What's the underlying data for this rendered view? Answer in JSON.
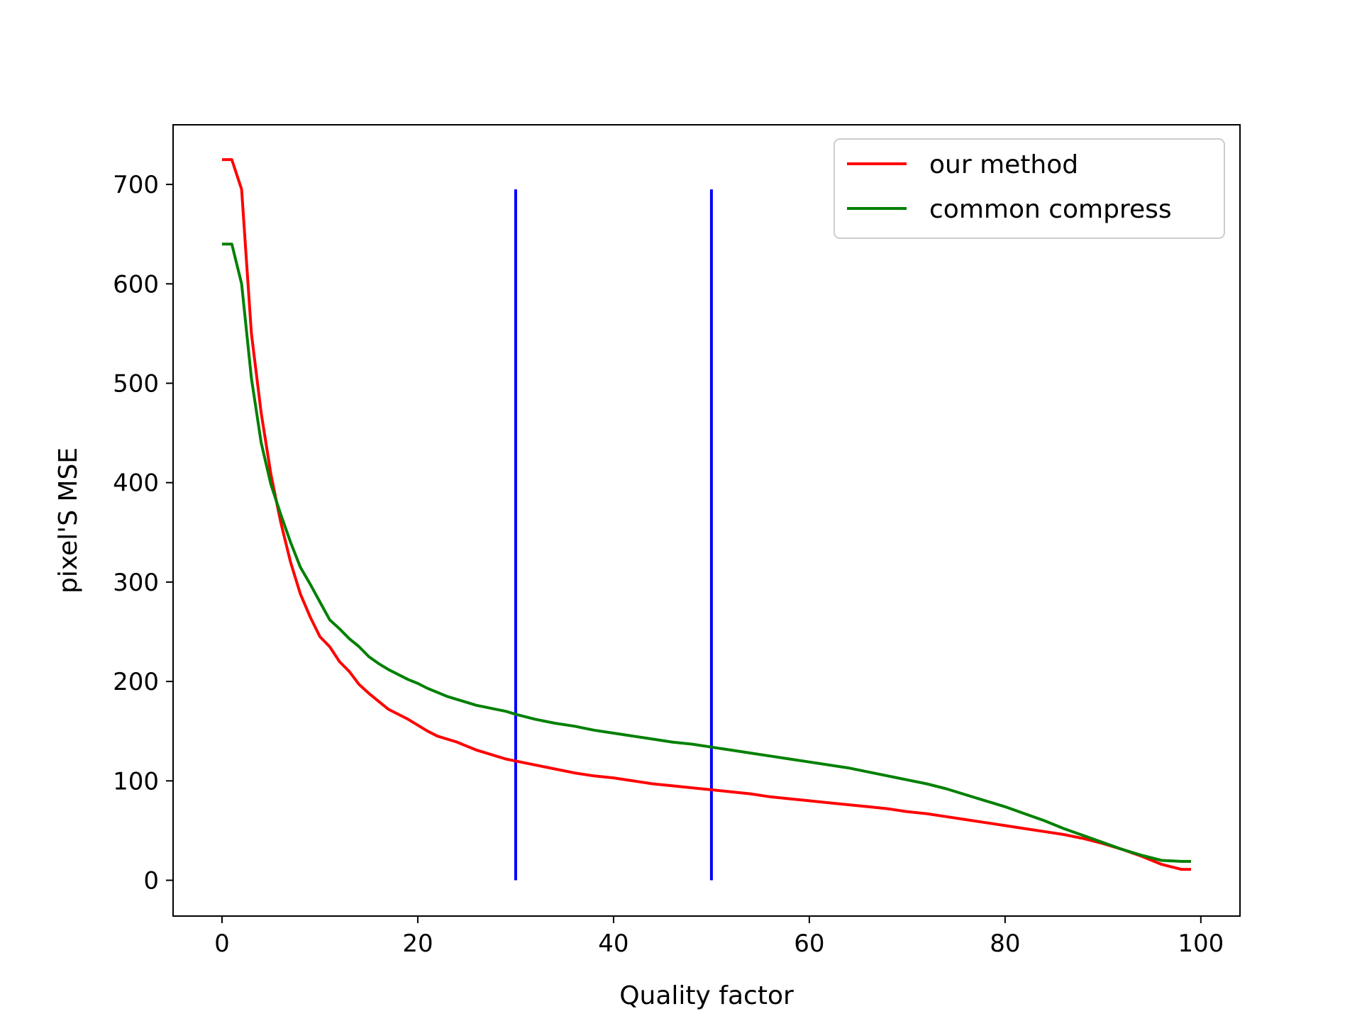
{
  "chart_data": {
    "type": "line",
    "title": "",
    "xlabel": "Quality factor",
    "ylabel": "pixel'S MSE",
    "xlim": [
      -5,
      104
    ],
    "ylim": [
      -36,
      760
    ],
    "xticks": [
      0,
      20,
      40,
      60,
      80,
      100
    ],
    "yticks": [
      0,
      100,
      200,
      300,
      400,
      500,
      600,
      700
    ],
    "grid": false,
    "legend_position": "top-right",
    "series": [
      {
        "name": "our method",
        "color": "#ff0000",
        "x": [
          0,
          1,
          2,
          3,
          4,
          5,
          6,
          7,
          8,
          9,
          10,
          11,
          12,
          13,
          14,
          15,
          16,
          17,
          18,
          19,
          20,
          21,
          22,
          23,
          24,
          25,
          26,
          27,
          28,
          29,
          30,
          32,
          34,
          36,
          38,
          40,
          42,
          44,
          46,
          48,
          50,
          52,
          54,
          56,
          58,
          60,
          62,
          64,
          66,
          68,
          70,
          72,
          74,
          76,
          78,
          80,
          82,
          84,
          86,
          88,
          90,
          92,
          94,
          96,
          98,
          99
        ],
        "y": [
          725,
          725,
          695,
          550,
          470,
          408,
          360,
          320,
          288,
          265,
          245,
          235,
          220,
          210,
          197,
          188,
          180,
          172,
          167,
          162,
          156,
          150,
          145,
          142,
          139,
          135,
          131,
          128,
          125,
          122,
          120,
          116,
          112,
          108,
          105,
          103,
          100,
          97,
          95,
          93,
          91,
          89,
          87,
          84,
          82,
          80,
          78,
          76,
          74,
          72,
          69,
          67,
          64,
          61,
          58,
          55,
          52,
          49,
          46,
          42,
          37,
          31,
          24,
          16,
          11,
          11
        ]
      },
      {
        "name": "common compress",
        "color": "#008000",
        "x": [
          0,
          1,
          2,
          3,
          4,
          5,
          6,
          7,
          8,
          9,
          10,
          11,
          12,
          13,
          14,
          15,
          16,
          17,
          18,
          19,
          20,
          21,
          22,
          23,
          24,
          25,
          26,
          27,
          28,
          29,
          30,
          32,
          34,
          36,
          38,
          40,
          42,
          44,
          46,
          48,
          50,
          52,
          54,
          56,
          58,
          60,
          62,
          64,
          66,
          68,
          70,
          72,
          74,
          76,
          78,
          80,
          82,
          84,
          86,
          88,
          90,
          92,
          94,
          96,
          98,
          99
        ],
        "y": [
          640,
          640,
          600,
          505,
          440,
          398,
          368,
          340,
          315,
          298,
          280,
          262,
          253,
          243,
          235,
          225,
          218,
          212,
          207,
          202,
          198,
          193,
          189,
          185,
          182,
          179,
          176,
          174,
          172,
          170,
          167,
          162,
          158,
          155,
          151,
          148,
          145,
          142,
          139,
          137,
          134,
          131,
          128,
          125,
          122,
          119,
          116,
          113,
          109,
          105,
          101,
          97,
          92,
          86,
          80,
          74,
          67,
          60,
          52,
          45,
          38,
          31,
          25,
          20,
          19,
          19
        ]
      }
    ],
    "vertical_lines": [
      {
        "x": 30,
        "y_range": [
          0,
          695
        ],
        "color": "#0000ff"
      },
      {
        "x": 50,
        "y_range": [
          0,
          695
        ],
        "color": "#0000ff"
      }
    ]
  }
}
